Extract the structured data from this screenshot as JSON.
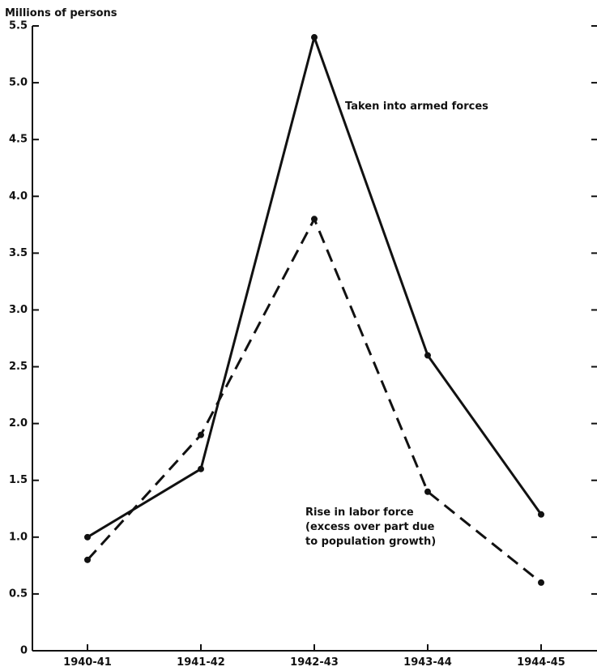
{
  "chart_data": {
    "type": "line",
    "ylabel": "Millions of persons",
    "categories": [
      "1940-41",
      "1941-42",
      "1942-43",
      "1943-44",
      "1944-45"
    ],
    "yticks": [
      "0",
      "0.5",
      "1.0",
      "1.5",
      "2.0",
      "2.5",
      "3.0",
      "3.5",
      "4.0",
      "4.5",
      "5.0",
      "5.5"
    ],
    "ylim": [
      0,
      5.5
    ],
    "series": [
      {
        "name": "Taken into armed forces",
        "values": [
          1.0,
          1.6,
          5.4,
          2.6,
          1.2
        ],
        "style": "solid",
        "color": "#111111"
      },
      {
        "name": "Rise in labor force",
        "name_lines": [
          "Rise in labor force",
          "(excess over part due",
          "to population growth)"
        ],
        "values": [
          0.8,
          1.9,
          3.8,
          1.4,
          0.6
        ],
        "style": "dashed",
        "color": "#111111"
      }
    ]
  }
}
